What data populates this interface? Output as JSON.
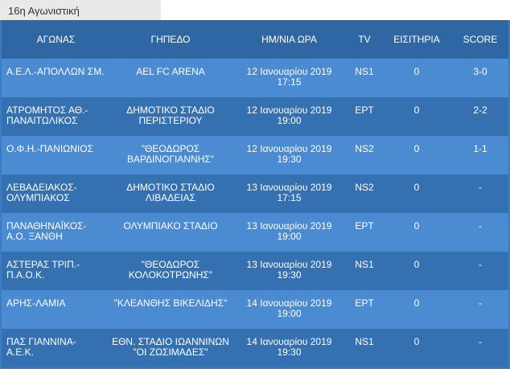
{
  "tab": {
    "title": "16η Αγωνιστική"
  },
  "table": {
    "headers": [
      "ΑΓΩΝΑΣ",
      "ΓΗΠΕΔΟ",
      "ΗΜ/ΝΙΑ ΩΡΑ",
      "TV",
      "ΕΙΣΙΤΗΡΙΑ",
      "SCORE"
    ],
    "rows": [
      [
        "Α.Ε.Λ.-ΑΠΟΛΛΩΝ ΣΜ.",
        "AEL FC ARENA",
        "12 Ιανουαρίου 2019\n17:15",
        "NS1",
        0,
        "3-0"
      ],
      [
        "ΑΤΡΟΜΗΤΟΣ ΑΘ.-\nΠΑΝΑΙΤΩΛΙΚΟΣ",
        "ΔΗΜΟΤΙΚΟ ΣΤΑΔΙΟ\nΠΕΡΙΣΤΕΡΙΟΥ",
        "12 Ιανουαρίου 2019\n19:00",
        "ΕΡΤ",
        0,
        "2-2"
      ],
      [
        "Ο.Φ.Η.-ΠΑΝΙΩΝΙΟΣ",
        "\"ΘΕΟΔΩΡΟΣ\nΒΑΡΔΙΝΟΓΙΑΝΝΗΣ\"",
        "12 Ιανουαρίου 2019\n19:30",
        "NS2",
        0,
        "1-1"
      ],
      [
        "ΛΕΒΑΔΕΙΑΚΟΣ-\nΟΛΥΜΠΙΑΚΟΣ",
        "ΔΗΜΟΤΙΚΟ ΣΤΑΔΙΟ\nΛΙΒΑΔΕΙΑΣ",
        "13 Ιανουαρίου 2019\n17:15",
        "NS2",
        0,
        "-"
      ],
      [
        "ΠΑΝΑΘΗΝΑΪΚΟΣ-\nΑ.Ο. ΞΑΝΘΗ",
        "ΟΛΥΜΠΙΑΚΟ ΣΤΑΔΙΟ",
        "13 Ιανουαρίου 2019\n19:00",
        "ΕΡΤ",
        0,
        "-"
      ],
      [
        "ΑΣΤΕΡΑΣ ΤΡΙΠ.-\nΠ.Α.Ο.Κ.",
        "\"ΘΕΟΔΩΡΟΣ\nΚΟΛΟΚΟΤΡΩΝΗΣ\"",
        "13 Ιανουαρίου 2019\n19:30",
        "NS1",
        0,
        "-"
      ],
      [
        "ΑΡΗΣ-ΛΑΜΙΑ",
        "\"ΚΛΕΑΝΘΗΣ ΒΙΚΕΛΙΔΗΣ\"",
        "14 Ιανουαρίου 2019\n19:00",
        "ΕΡΤ",
        0,
        "-"
      ],
      [
        "ΠΑΣ ΓΙΑΝΝΙΝΑ-\nΑ.Ε.Κ.",
        "ΕΘΝ. ΣΤΑΔΙΟ ΙΩΑΝΝΙΝΩΝ\n\"ΟΙ ΖΩΣΙΜΑΔΕΣ\"",
        "14 Ιανουαρίου 2019\n19:30",
        "NS1",
        0,
        "-"
      ]
    ]
  }
}
